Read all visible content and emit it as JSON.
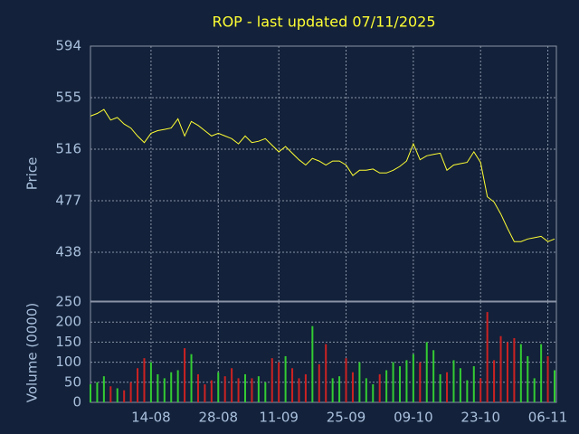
{
  "chart_data": {
    "type": "price-volume",
    "title": "ROP - last updated 07/11/2025",
    "ylabel": "Price",
    "volume_ylabel": "Volume (0000)",
    "categories": [
      null,
      null,
      null,
      null,
      null,
      null,
      null,
      null,
      null,
      "14-08",
      null,
      null,
      null,
      null,
      null,
      null,
      null,
      null,
      null,
      "28-08",
      null,
      null,
      null,
      null,
      null,
      null,
      null,
      null,
      "11-09",
      null,
      null,
      null,
      null,
      null,
      null,
      null,
      null,
      null,
      "25-09",
      null,
      null,
      null,
      null,
      null,
      null,
      null,
      null,
      null,
      "09-10",
      null,
      null,
      null,
      null,
      null,
      null,
      null,
      null,
      null,
      "23-10",
      null,
      null,
      null,
      null,
      null,
      null,
      null,
      null,
      null,
      "06-11",
      null
    ],
    "values": [
      541,
      543,
      546,
      538,
      540,
      535,
      532,
      526,
      521,
      528,
      530,
      531,
      532,
      539,
      526,
      537,
      534,
      530,
      526,
      528,
      526,
      524,
      520,
      526,
      521,
      522,
      524,
      519,
      514,
      518,
      513,
      508,
      504,
      509,
      507,
      504,
      507,
      507,
      504,
      496,
      500,
      500,
      501,
      498,
      498,
      500,
      503,
      507,
      520,
      508,
      511,
      512,
      513,
      500,
      504,
      505,
      506,
      514,
      506,
      480,
      476,
      467,
      456,
      446,
      446,
      448,
      449,
      450,
      446,
      448
    ],
    "volume_values": [
      45,
      50,
      65,
      40,
      35,
      30,
      50,
      85,
      110,
      100,
      70,
      60,
      75,
      80,
      135,
      120,
      70,
      45,
      55,
      75,
      65,
      85,
      60,
      70,
      60,
      65,
      50,
      110,
      100,
      115,
      85,
      60,
      70,
      190,
      95,
      145,
      60,
      65,
      110,
      75,
      100,
      60,
      45,
      70,
      80,
      100,
      90,
      105,
      120,
      100,
      150,
      130,
      70,
      75,
      105,
      85,
      55,
      90,
      60,
      225,
      105,
      165,
      150,
      160,
      145,
      115,
      60,
      145,
      115,
      80
    ],
    "ylim": [
      401,
      594
    ],
    "yticks": [
      438,
      477,
      516,
      555,
      594
    ],
    "volume_ylim": [
      0,
      250
    ],
    "volume_yticks": [
      0,
      50,
      100,
      150,
      200,
      250
    ],
    "color": "#ffff33",
    "up_color": "#33cc33",
    "down_color": "#cc2222",
    "grid": true
  }
}
